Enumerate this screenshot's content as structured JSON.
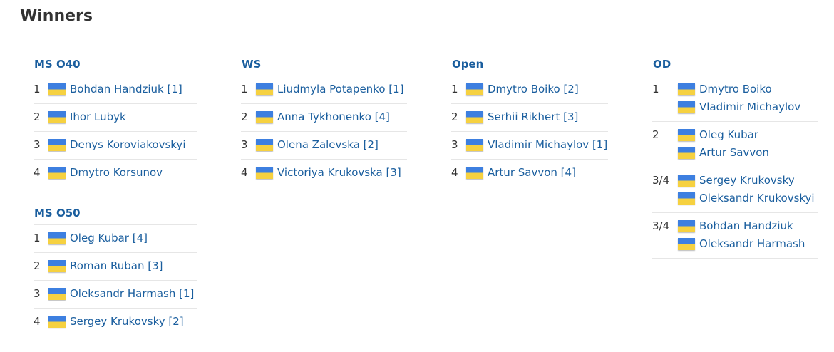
{
  "title": "Winners",
  "colors": {
    "link": "#1a5e9e",
    "flag_top": "#3d7fe0",
    "flag_bottom": "#f6d140"
  },
  "columns": [
    {
      "categories": [
        {
          "title": "MS O40",
          "rows": [
            {
              "place": "1",
              "players": [
                "Bohdan Handziuk [1]"
              ]
            },
            {
              "place": "2",
              "players": [
                "Ihor Lubyk"
              ]
            },
            {
              "place": "3",
              "players": [
                "Denys Koroviakovskyi"
              ]
            },
            {
              "place": "4",
              "players": [
                "Dmytro Korsunov"
              ]
            }
          ]
        },
        {
          "title": "MS O50",
          "rows": [
            {
              "place": "1",
              "players": [
                "Oleg Kubar [4]"
              ]
            },
            {
              "place": "2",
              "players": [
                "Roman Ruban [3]"
              ]
            },
            {
              "place": "3",
              "players": [
                "Oleksandr Harmash [1]"
              ]
            },
            {
              "place": "4",
              "players": [
                "Sergey Krukovsky [2]"
              ]
            }
          ]
        }
      ]
    },
    {
      "categories": [
        {
          "title": "WS",
          "rows": [
            {
              "place": "1",
              "players": [
                "Liudmyla Potapenko [1]"
              ]
            },
            {
              "place": "2",
              "players": [
                "Anna Tykhonenko [4]"
              ]
            },
            {
              "place": "3",
              "players": [
                "Olena Zalevska [2]"
              ]
            },
            {
              "place": "4",
              "players": [
                "Victoriya Krukovska [3]"
              ]
            }
          ]
        }
      ]
    },
    {
      "categories": [
        {
          "title": "Open",
          "rows": [
            {
              "place": "1",
              "players": [
                "Dmytro Boiko [2]"
              ]
            },
            {
              "place": "2",
              "players": [
                "Serhii Rikhert [3]"
              ]
            },
            {
              "place": "3",
              "players": [
                "Vladimir Michaylov [1]"
              ]
            },
            {
              "place": "4",
              "players": [
                "Artur Savvon [4]"
              ]
            }
          ]
        }
      ]
    },
    {
      "categories": [
        {
          "title": "OD",
          "rows": [
            {
              "place": "1",
              "players": [
                "Dmytro Boiko",
                "Vladimir Michaylov"
              ]
            },
            {
              "place": "2",
              "players": [
                "Oleg Kubar",
                "Artur Savvon"
              ]
            },
            {
              "place": "3/4",
              "players": [
                "Sergey Krukovsky",
                "Oleksandr Krukovskyi"
              ]
            },
            {
              "place": "3/4",
              "players": [
                "Bohdan Handziuk",
                "Oleksandr Harmash"
              ]
            }
          ]
        }
      ]
    }
  ]
}
